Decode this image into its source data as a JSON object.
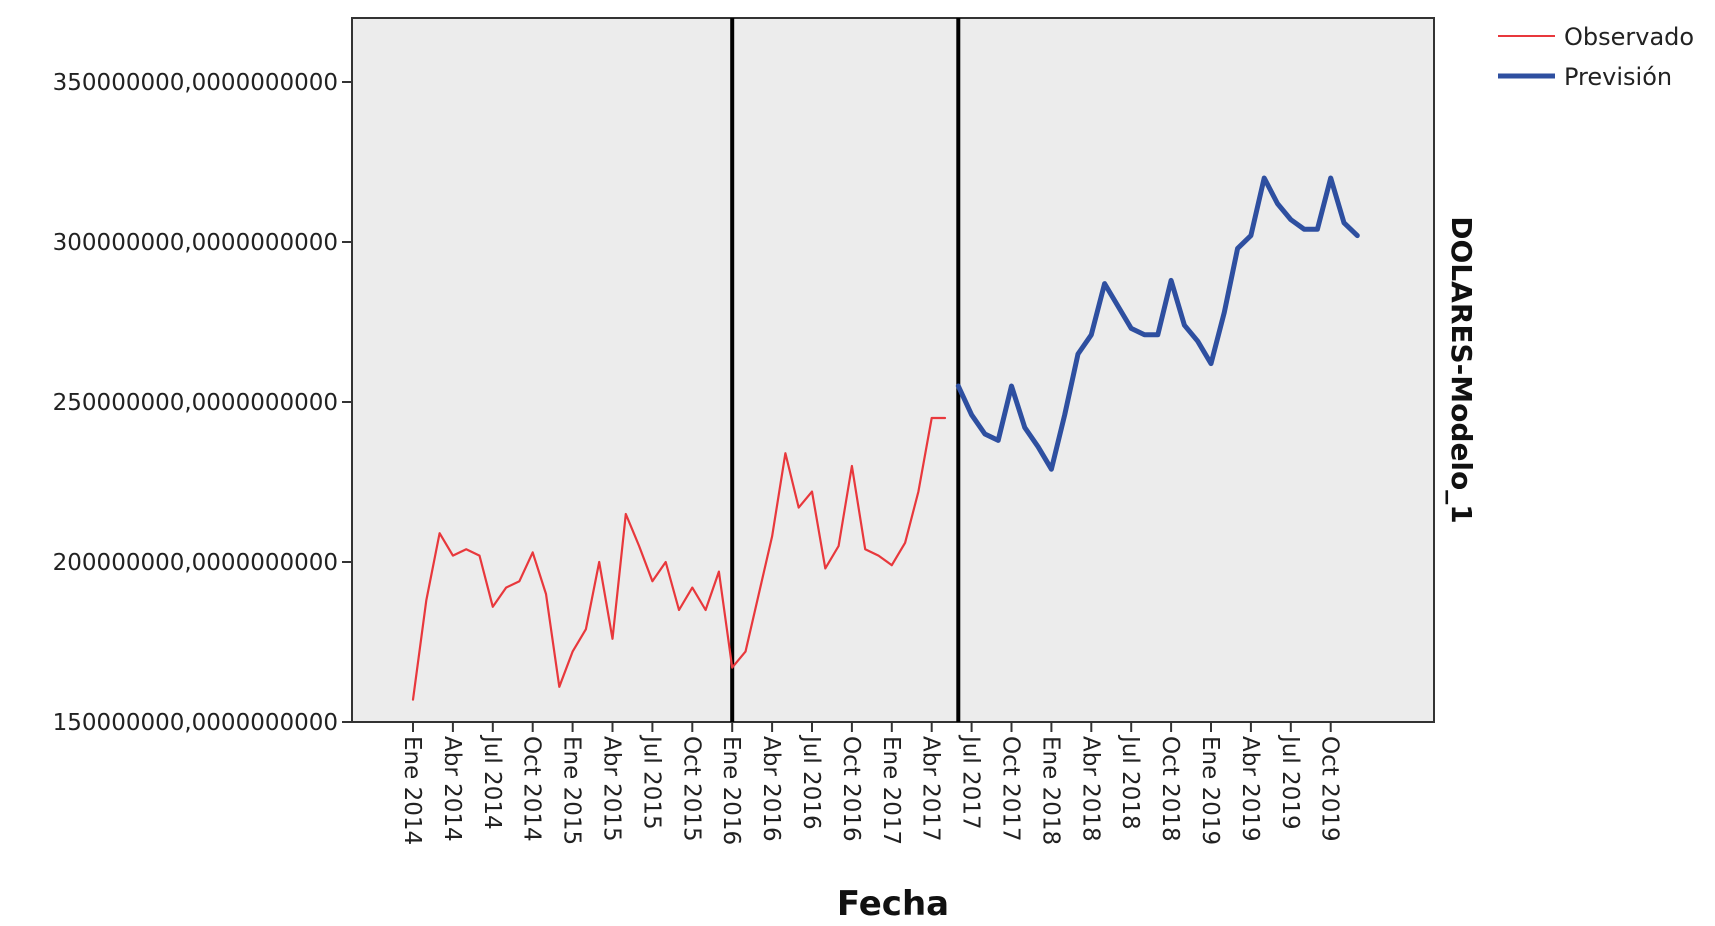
{
  "chart_data": {
    "type": "line",
    "title": "",
    "xlabel": "Fecha",
    "ylabel": "DOLARES-Modelo_1",
    "ylim": [
      150000000,
      370000000
    ],
    "y_ticks": [
      150000000,
      200000000,
      250000000,
      300000000,
      350000000
    ],
    "y_tick_labels": [
      "150000000,0000000000",
      "200000000,0000000000",
      "250000000,0000000000",
      "300000000,0000000000",
      "350000000,0000000000"
    ],
    "x_start": "2014-01",
    "x_end": "2019-12",
    "x_tick_labels": [
      "Ene 2014",
      "Abr 2014",
      "Jul 2014",
      "Oct 2014",
      "Ene 2015",
      "Abr 2015",
      "Jul 2015",
      "Oct 2015",
      "Ene 2016",
      "Abr 2016",
      "Jul 2016",
      "Oct 2016",
      "Ene 2017",
      "Abr 2017",
      "Jul 2017",
      "Oct 2017",
      "Ene 2018",
      "Abr 2018",
      "Jul 2018",
      "Oct 2018",
      "Ene 2019",
      "Abr 2019",
      "Jul 2019",
      "Oct 2019"
    ],
    "x_tick_months": [
      "2014-01",
      "2014-04",
      "2014-07",
      "2014-10",
      "2015-01",
      "2015-04",
      "2015-07",
      "2015-10",
      "2016-01",
      "2016-04",
      "2016-07",
      "2016-10",
      "2017-01",
      "2017-04",
      "2017-07",
      "2017-10",
      "2018-01",
      "2018-04",
      "2018-07",
      "2018-10",
      "2019-01",
      "2019-04",
      "2019-07",
      "2019-10"
    ],
    "vertical_lines": [
      "2016-01",
      "2017-06"
    ],
    "grid": false,
    "legend_position": "top-right, outside plot",
    "series": [
      {
        "name": "Observado",
        "color": "#e8383c",
        "x": [
          "2014-01",
          "2014-02",
          "2014-03",
          "2014-04",
          "2014-05",
          "2014-06",
          "2014-07",
          "2014-08",
          "2014-09",
          "2014-10",
          "2014-11",
          "2014-12",
          "2015-01",
          "2015-02",
          "2015-03",
          "2015-04",
          "2015-05",
          "2015-06",
          "2015-07",
          "2015-08",
          "2015-09",
          "2015-10",
          "2015-11",
          "2015-12",
          "2016-01",
          "2016-02",
          "2016-03",
          "2016-04",
          "2016-05",
          "2016-06",
          "2016-07",
          "2016-08",
          "2016-09",
          "2016-10",
          "2016-11",
          "2016-12",
          "2017-01",
          "2017-02",
          "2017-03",
          "2017-04",
          "2017-05"
        ],
        "y": [
          157000000,
          188000000,
          209000000,
          202000000,
          204000000,
          202000000,
          186000000,
          192000000,
          194000000,
          203000000,
          190000000,
          161000000,
          172000000,
          179000000,
          200000000,
          176000000,
          215000000,
          205000000,
          194000000,
          200000000,
          185000000,
          192000000,
          185000000,
          197000000,
          167000000,
          172000000,
          190000000,
          208000000,
          234000000,
          217000000,
          222000000,
          198000000,
          205000000,
          230000000,
          204000000,
          202000000,
          199000000,
          206000000,
          222000000,
          245000000,
          245000000
        ]
      },
      {
        "name": "Previsión",
        "color": "#2e4fa0",
        "x": [
          "2017-06",
          "2017-07",
          "2017-08",
          "2017-09",
          "2017-10",
          "2017-11",
          "2017-12",
          "2018-01",
          "2018-02",
          "2018-03",
          "2018-04",
          "2018-05",
          "2018-06",
          "2018-07",
          "2018-08",
          "2018-09",
          "2018-10",
          "2018-11",
          "2018-12",
          "2019-01",
          "2019-02",
          "2019-03",
          "2019-04",
          "2019-05",
          "2019-06",
          "2019-07",
          "2019-08",
          "2019-09",
          "2019-10",
          "2019-11",
          "2019-12"
        ],
        "y": [
          255000000,
          246000000,
          240000000,
          238000000,
          255000000,
          242000000,
          236000000,
          229000000,
          246000000,
          265000000,
          271000000,
          287000000,
          280000000,
          273000000,
          271000000,
          271000000,
          288000000,
          274000000,
          269000000,
          262000000,
          278000000,
          298000000,
          302000000,
          320000000,
          312000000,
          307000000,
          304000000,
          304000000,
          320000000,
          306000000,
          302000000
        ]
      }
    ]
  }
}
